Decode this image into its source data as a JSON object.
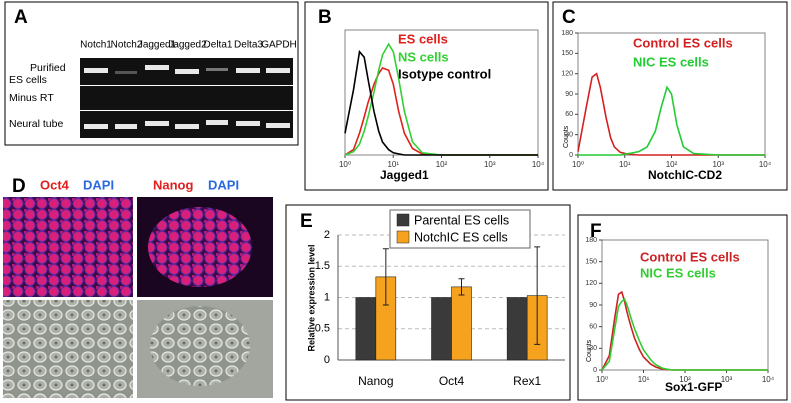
{
  "panel_a": {
    "panel": "A",
    "lanes": [
      "Notch1",
      "Notch2",
      "Jagged1",
      "Jagged2",
      "Delta1",
      "Delta3",
      "GAPDH"
    ],
    "rows": [
      [
        "Purified",
        "ES cells"
      ],
      [
        "Minus RT"
      ],
      [
        "Neural tube"
      ]
    ]
  },
  "panel_d": {
    "panel": "D",
    "stains": [
      [
        "Oct4",
        "DAPI"
      ],
      [
        "Nanog",
        "DAPI"
      ]
    ]
  },
  "chart_data": [
    {
      "type": "line",
      "panel": "B",
      "x_label": "Jagged1",
      "log_x": true,
      "xlim": [
        1,
        10000
      ],
      "xticks": [
        {
          "value": 1,
          "label": "10⁰"
        },
        {
          "value": 10,
          "label": "10¹"
        },
        {
          "value": 100,
          "label": "10²"
        },
        {
          "value": 1000,
          "label": "10³"
        },
        {
          "value": 10000,
          "label": "10⁴"
        }
      ],
      "ylim": [
        0,
        115
      ],
      "x": [
        1,
        1.5,
        2,
        2.5,
        3,
        4,
        5,
        6,
        8,
        10,
        13,
        17,
        25,
        40,
        100,
        10000
      ],
      "series": [
        {
          "name": "ES cells",
          "color": "#e0201b",
          "values": [
            0,
            5,
            20,
            35,
            48,
            65,
            75,
            80,
            78,
            65,
            40,
            20,
            6,
            1,
            0,
            0
          ]
        },
        {
          "name": "NS cells",
          "color": "#33d033",
          "values": [
            0,
            3,
            10,
            22,
            35,
            58,
            78,
            92,
            102,
            95,
            70,
            40,
            12,
            2,
            0,
            0
          ]
        },
        {
          "name": "Isotype control",
          "color": "#000000",
          "values": [
            20,
            60,
            95,
            90,
            70,
            40,
            22,
            12,
            5,
            2,
            1,
            0,
            0,
            0,
            0,
            0
          ]
        }
      ]
    },
    {
      "type": "line",
      "panel": "C",
      "x_label": "NotchIC-CD2",
      "y_label": "Counts",
      "log_x": true,
      "xlim": [
        1,
        10000
      ],
      "xticks": [
        {
          "value": 1,
          "label": "10⁰"
        },
        {
          "value": 10,
          "label": "10¹"
        },
        {
          "value": 100,
          "label": "10²"
        },
        {
          "value": 1000,
          "label": "10³"
        },
        {
          "value": 10000,
          "label": "10⁴"
        }
      ],
      "ylim": [
        0,
        180
      ],
      "yticks": [
        0,
        30,
        60,
        90,
        120,
        150,
        180
      ],
      "x": [
        1,
        1.5,
        2,
        2.5,
        3,
        4,
        5,
        6,
        8,
        12,
        20,
        30,
        45,
        60,
        80,
        100,
        130,
        180,
        300,
        1000,
        10000
      ],
      "series": [
        {
          "name": "Control ES cells",
          "color": "#d42020",
          "values": [
            5,
            70,
            115,
            120,
            100,
            55,
            25,
            12,
            4,
            1,
            0,
            0,
            0,
            0,
            0,
            0,
            0,
            0,
            0,
            0,
            0
          ]
        },
        {
          "name": "NIC ES cells",
          "color": "#22cc33",
          "values": [
            0,
            0,
            0,
            0,
            0,
            0,
            0,
            0,
            0,
            2,
            5,
            12,
            35,
            70,
            100,
            90,
            45,
            12,
            2,
            0,
            0
          ]
        }
      ]
    },
    {
      "type": "bar",
      "panel": "E",
      "y_label": "Relative expression level",
      "categories": [
        "Nanog",
        "Oct4",
        "Rex1"
      ],
      "ylim": [
        0,
        2
      ],
      "yticks": [
        0,
        0.5,
        1,
        1.5,
        2
      ],
      "grid": true,
      "series": [
        {
          "name": "Parental ES cells",
          "color": "#3a3a3a",
          "values": [
            1,
            1,
            1
          ]
        },
        {
          "name": "NotchIC ES cells",
          "color": "#f5a21e",
          "values": [
            1.33,
            1.17,
            1.03
          ],
          "errors": [
            0.45,
            0.13,
            0.78
          ]
        }
      ]
    },
    {
      "type": "line",
      "panel": "F",
      "x_label": "Sox1-GFP",
      "y_label": "Counts",
      "log_x": true,
      "xlim": [
        1,
        10000
      ],
      "xticks": [
        {
          "value": 1,
          "label": "10⁰"
        },
        {
          "value": 10,
          "label": "10¹"
        },
        {
          "value": 100,
          "label": "10²"
        },
        {
          "value": 1000,
          "label": "10³"
        },
        {
          "value": 10000,
          "label": "10⁴"
        }
      ],
      "ylim": [
        0,
        180
      ],
      "yticks": [
        0,
        30,
        60,
        90,
        120,
        150,
        180
      ],
      "x": [
        1,
        1.5,
        2,
        2.5,
        3,
        3.5,
        4,
        5,
        6,
        8,
        10,
        15,
        20,
        30,
        50,
        100,
        10000
      ],
      "series": [
        {
          "name": "Control ES cells",
          "color": "#cc2222",
          "values": [
            0,
            20,
            70,
            105,
            108,
            95,
            80,
            60,
            45,
            28,
            18,
            8,
            4,
            1,
            0,
            0,
            0
          ]
        },
        {
          "name": "NIC ES cells",
          "color": "#33cc33",
          "values": [
            0,
            12,
            55,
            88,
            95,
            98,
            90,
            72,
            58,
            40,
            28,
            14,
            7,
            2,
            0,
            0,
            0
          ]
        }
      ]
    }
  ]
}
